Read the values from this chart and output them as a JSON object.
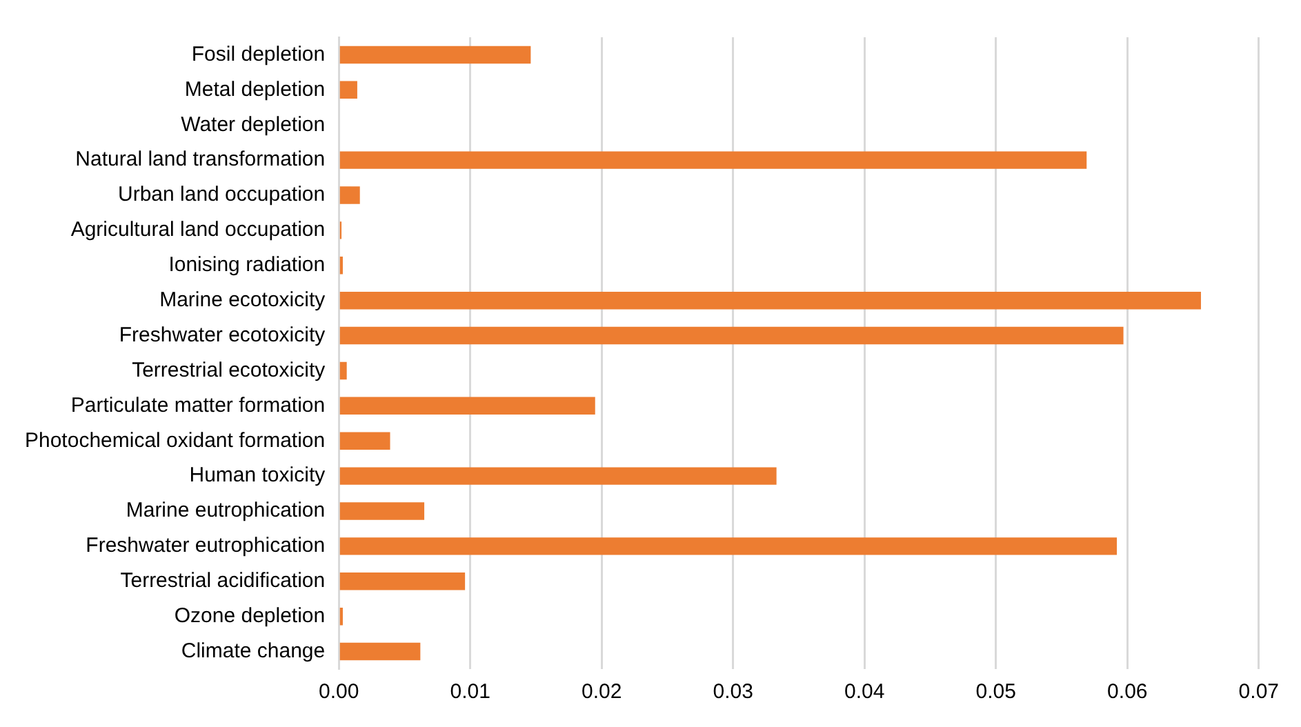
{
  "chart_data": {
    "type": "bar",
    "orientation": "horizontal",
    "categories": [
      "Fosil depletion",
      "Metal depletion",
      "Water depletion",
      "Natural land transformation",
      "Urban land occupation",
      "Agricultural land occupation",
      "Ionising radiation",
      "Marine ecotoxicity",
      "Freshwater ecotoxicity",
      "Terrestrial ecotoxicity",
      "Particulate matter formation",
      "Photochemical oxidant formation",
      "Human toxicity",
      "Marine eutrophication",
      "Freshwater eutrophication",
      "Terrestrial acidification",
      "Ozone depletion",
      "Climate change"
    ],
    "values": [
      0.0146,
      0.0014,
      0,
      0.0569,
      0.0016,
      0.0002,
      0.0003,
      0.0656,
      0.0597,
      0.0006,
      0.0195,
      0.0039,
      0.0333,
      0.0065,
      0.0592,
      0.0096,
      0.0003,
      0.0062
    ],
    "color": "#ed7d31",
    "xlim": [
      0,
      0.07
    ],
    "xticks": [
      {
        "value": 0,
        "label": "0.00"
      },
      {
        "value": 0.01,
        "label": "0.01"
      },
      {
        "value": 0.02,
        "label": "0.02"
      },
      {
        "value": 0.03,
        "label": "0.03"
      },
      {
        "value": 0.04,
        "label": "0.04"
      },
      {
        "value": 0.05,
        "label": "0.05"
      },
      {
        "value": 0.06,
        "label": "0.06"
      },
      {
        "value": 0.07,
        "label": "0.07"
      }
    ],
    "grid": "x",
    "legend": false
  }
}
